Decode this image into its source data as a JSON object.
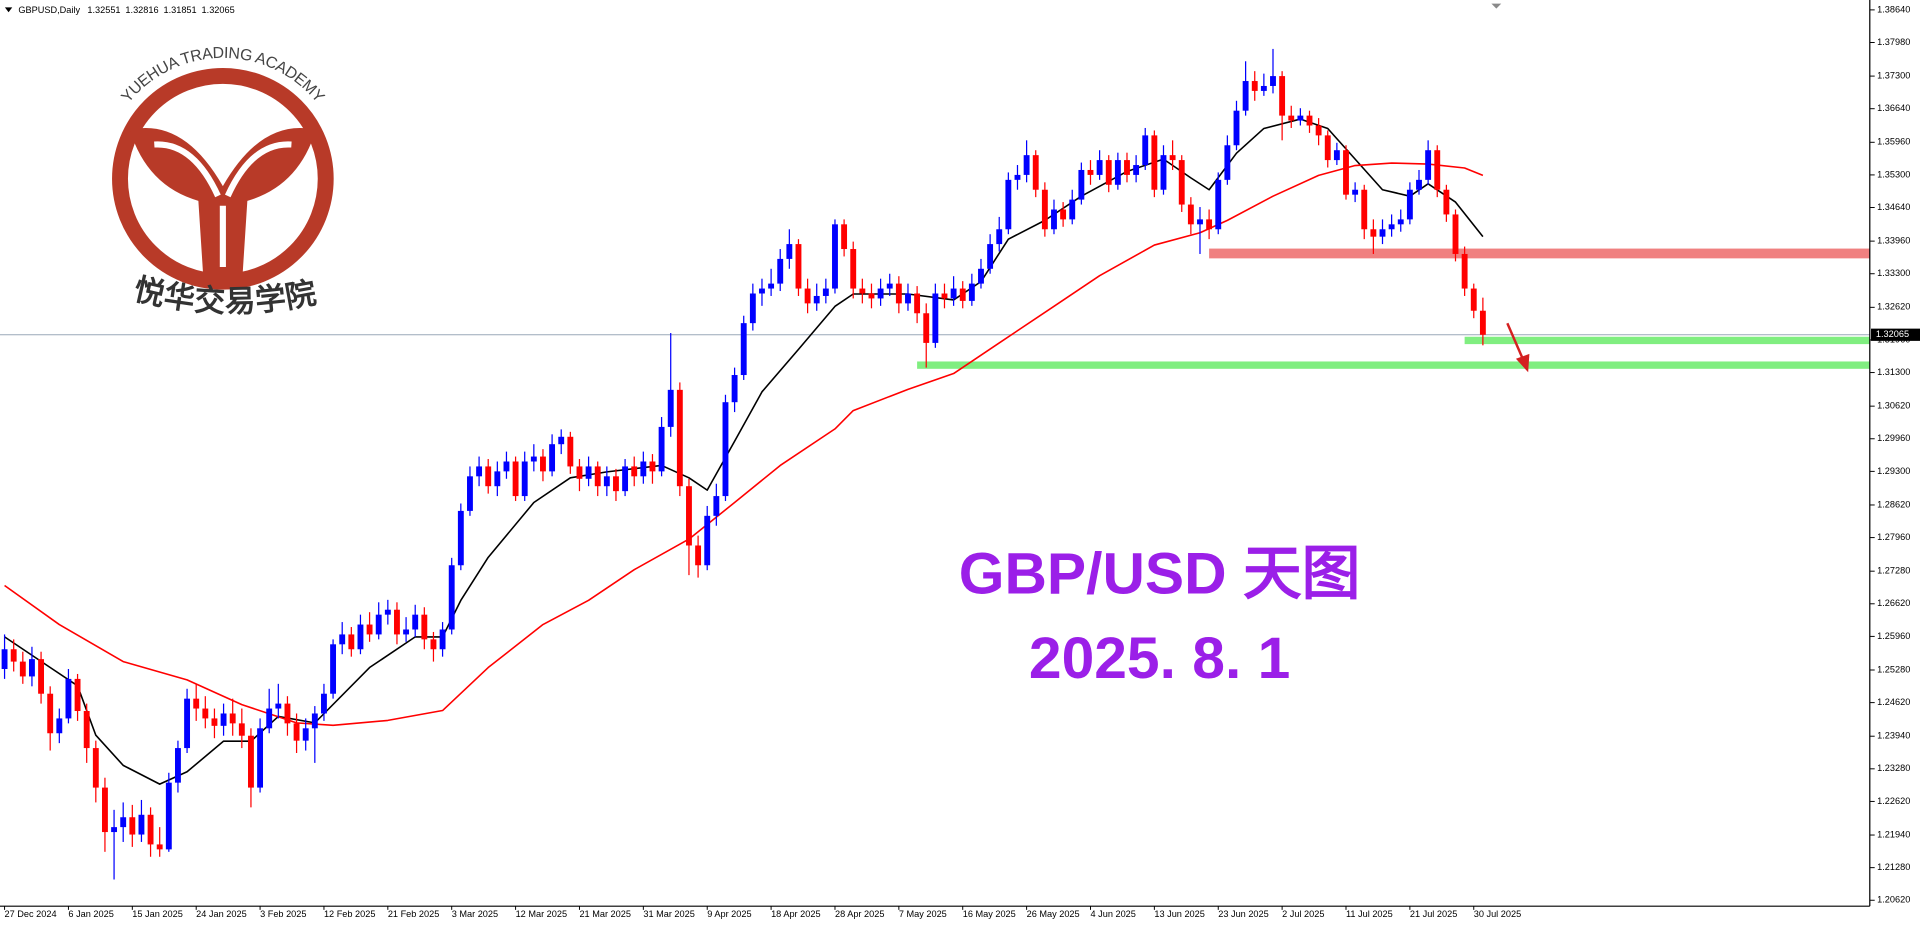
{
  "chart_data": {
    "type": "candlestick",
    "header": {
      "symbol": "GBPUSD,Daily"
    },
    "up_color": "#0000ff",
    "down_color": "#ff0000",
    "grid": false,
    "xlim": [
      -0.5,
      204.4
    ],
    "ylim": [
      1.205,
      1.3884
    ],
    "yticks": [
      {
        "value": 1.3864,
        "label": "1.38640"
      },
      {
        "value": 1.3798,
        "label": "1.37980"
      },
      {
        "value": 1.373,
        "label": "1.37300"
      },
      {
        "value": 1.3664,
        "label": "1.36640"
      },
      {
        "value": 1.3596,
        "label": "1.35960"
      },
      {
        "value": 1.353,
        "label": "1.35300"
      },
      {
        "value": 1.3464,
        "label": "1.34640"
      },
      {
        "value": 1.3396,
        "label": "1.33960"
      },
      {
        "value": 1.333,
        "label": "1.33300"
      },
      {
        "value": 1.3262,
        "label": "1.32620"
      },
      {
        "value": 1.3196,
        "label": "1.31960"
      },
      {
        "value": 1.313,
        "label": "1.31300"
      },
      {
        "value": 1.3062,
        "label": "1.30620"
      },
      {
        "value": 1.2996,
        "label": "1.29960"
      },
      {
        "value": 1.293,
        "label": "1.29300"
      },
      {
        "value": 1.2862,
        "label": "1.28620"
      },
      {
        "value": 1.2796,
        "label": "1.27960"
      },
      {
        "value": 1.2728,
        "label": "1.27280"
      },
      {
        "value": 1.2662,
        "label": "1.26620"
      },
      {
        "value": 1.2596,
        "label": "1.25960"
      },
      {
        "value": 1.2528,
        "label": "1.25280"
      },
      {
        "value": 1.2462,
        "label": "1.24620"
      },
      {
        "value": 1.2394,
        "label": "1.23940"
      },
      {
        "value": 1.2328,
        "label": "1.23280"
      },
      {
        "value": 1.2262,
        "label": "1.22620"
      },
      {
        "value": 1.2194,
        "label": "1.21940"
      },
      {
        "value": 1.2128,
        "label": "1.21280"
      },
      {
        "value": 1.2062,
        "label": "1.20620"
      }
    ],
    "xticks": [
      {
        "value": 0,
        "label": "27 Dec 2024"
      },
      {
        "value": 7,
        "label": "6 Jan 2025"
      },
      {
        "value": 14,
        "label": "15 Jan 2025"
      },
      {
        "value": 21,
        "label": "24 Jan 2025"
      },
      {
        "value": 28,
        "label": "3 Feb 2025"
      },
      {
        "value": 35,
        "label": "12 Feb 2025"
      },
      {
        "value": 42,
        "label": "21 Feb 2025"
      },
      {
        "value": 49,
        "label": "3 Mar 2025"
      },
      {
        "value": 56,
        "label": "12 Mar 2025"
      },
      {
        "value": 63,
        "label": "21 Mar 2025"
      },
      {
        "value": 70,
        "label": "31 Mar 2025"
      },
      {
        "value": 77,
        "label": "9 Apr 2025"
      },
      {
        "value": 84,
        "label": "18 Apr 2025"
      },
      {
        "value": 91,
        "label": "28 Apr 2025"
      },
      {
        "value": 98,
        "label": "7 May 2025"
      },
      {
        "value": 105,
        "label": "16 May 2025"
      },
      {
        "value": 112,
        "label": "26 May 2025"
      },
      {
        "value": 119,
        "label": "4 Jun 2025"
      },
      {
        "value": 126,
        "label": "13 Jun 2025"
      },
      {
        "value": 133,
        "label": "23 Jun 2025"
      },
      {
        "value": 140,
        "label": "2 Jul 2025"
      },
      {
        "value": 147,
        "label": "11 Jul 2025"
      },
      {
        "value": 154,
        "label": "21 Jul 2025"
      },
      {
        "value": 161,
        "label": "30 Jul 2025"
      }
    ],
    "ohlc": [
      [
        1.253,
        1.26,
        1.251,
        1.257
      ],
      [
        1.257,
        1.259,
        1.2525,
        1.2545
      ],
      [
        1.2545,
        1.2565,
        1.25,
        1.2515
      ],
      [
        1.2515,
        1.2575,
        1.2495,
        1.255
      ],
      [
        1.255,
        1.2565,
        1.246,
        1.248
      ],
      [
        1.248,
        1.2495,
        1.2365,
        1.24
      ],
      [
        1.24,
        1.245,
        1.238,
        1.243
      ],
      [
        1.243,
        1.253,
        1.242,
        1.251
      ],
      [
        1.251,
        1.252,
        1.2425,
        1.2445
      ],
      [
        1.2445,
        1.246,
        1.234,
        1.237
      ],
      [
        1.237,
        1.2385,
        1.226,
        1.229
      ],
      [
        1.229,
        1.231,
        1.216,
        1.22
      ],
      [
        1.22,
        1.2245,
        1.2104,
        1.221
      ],
      [
        1.221,
        1.226,
        1.218,
        1.223
      ],
      [
        1.223,
        1.2255,
        1.217,
        1.2195
      ],
      [
        1.2195,
        1.2265,
        1.218,
        1.2235
      ],
      [
        1.2235,
        1.225,
        1.215,
        1.2175
      ],
      [
        1.2175,
        1.221,
        1.215,
        1.2165
      ],
      [
        1.2165,
        1.232,
        1.216,
        1.23
      ],
      [
        1.23,
        1.2385,
        1.228,
        1.237
      ],
      [
        1.237,
        1.249,
        1.236,
        1.247
      ],
      [
        1.247,
        1.25,
        1.2425,
        1.245
      ],
      [
        1.245,
        1.2475,
        1.241,
        1.243
      ],
      [
        1.243,
        1.245,
        1.239,
        1.2415
      ],
      [
        1.2415,
        1.246,
        1.2395,
        1.244
      ],
      [
        1.244,
        1.247,
        1.2395,
        1.242
      ],
      [
        1.242,
        1.245,
        1.237,
        1.2395
      ],
      [
        1.2395,
        1.241,
        1.225,
        1.229
      ],
      [
        1.229,
        1.243,
        1.228,
        1.241
      ],
      [
        1.241,
        1.249,
        1.24,
        1.245
      ],
      [
        1.245,
        1.25,
        1.243,
        1.246
      ],
      [
        1.246,
        1.2475,
        1.2395,
        1.242
      ],
      [
        1.242,
        1.244,
        1.236,
        1.2385
      ],
      [
        1.2385,
        1.243,
        1.2365,
        1.241
      ],
      [
        1.241,
        1.2455,
        1.234,
        1.244
      ],
      [
        1.244,
        1.25,
        1.2425,
        1.248
      ],
      [
        1.248,
        1.259,
        1.247,
        1.258
      ],
      [
        1.258,
        1.2625,
        1.256,
        1.26
      ],
      [
        1.26,
        1.2615,
        1.2555,
        1.257
      ],
      [
        1.257,
        1.264,
        1.256,
        1.262
      ],
      [
        1.262,
        1.2645,
        1.2585,
        1.26
      ],
      [
        1.26,
        1.2665,
        1.259,
        1.264
      ],
      [
        1.264,
        1.267,
        1.262,
        1.265
      ],
      [
        1.265,
        1.2665,
        1.258,
        1.26
      ],
      [
        1.26,
        1.2635,
        1.2585,
        1.261
      ],
      [
        1.261,
        1.266,
        1.2595,
        1.264
      ],
      [
        1.264,
        1.2655,
        1.257,
        1.259
      ],
      [
        1.259,
        1.2605,
        1.2545,
        1.257
      ],
      [
        1.257,
        1.2625,
        1.2555,
        1.261
      ],
      [
        1.261,
        1.2755,
        1.26,
        1.274
      ],
      [
        1.274,
        1.2865,
        1.273,
        1.285
      ],
      [
        1.285,
        1.294,
        1.284,
        1.292
      ],
      [
        1.292,
        1.296,
        1.29,
        1.294
      ],
      [
        1.294,
        1.2955,
        1.2885,
        1.29
      ],
      [
        1.29,
        1.295,
        1.288,
        1.293
      ],
      [
        1.293,
        1.297,
        1.2915,
        1.295
      ],
      [
        1.295,
        1.296,
        1.287,
        1.288
      ],
      [
        1.288,
        1.297,
        1.287,
        1.295
      ],
      [
        1.295,
        1.2985,
        1.293,
        1.296
      ],
      [
        1.296,
        1.2975,
        1.291,
        1.293
      ],
      [
        1.293,
        1.3005,
        1.292,
        1.2985
      ],
      [
        1.2985,
        1.3015,
        1.2965,
        1.3
      ],
      [
        1.3,
        1.301,
        1.2925,
        1.294
      ],
      [
        1.294,
        1.2955,
        1.289,
        1.2915
      ],
      [
        1.2915,
        1.296,
        1.29,
        1.294
      ],
      [
        1.294,
        1.295,
        1.288,
        1.29
      ],
      [
        1.29,
        1.294,
        1.288,
        1.292
      ],
      [
        1.292,
        1.2935,
        1.287,
        1.289
      ],
      [
        1.289,
        1.2955,
        1.288,
        1.294
      ],
      [
        1.294,
        1.296,
        1.29,
        1.292
      ],
      [
        1.292,
        1.297,
        1.2905,
        1.295
      ],
      [
        1.295,
        1.2965,
        1.2905,
        1.293
      ],
      [
        1.293,
        1.304,
        1.292,
        1.302
      ],
      [
        1.302,
        1.321,
        1.3,
        1.3095
      ],
      [
        1.3095,
        1.311,
        1.288,
        1.29
      ],
      [
        1.29,
        1.2915,
        1.272,
        1.278
      ],
      [
        1.278,
        1.28,
        1.2715,
        1.274
      ],
      [
        1.274,
        1.286,
        1.273,
        1.284
      ],
      [
        1.284,
        1.2905,
        1.282,
        1.288
      ],
      [
        1.288,
        1.3085,
        1.287,
        1.307
      ],
      [
        1.307,
        1.314,
        1.305,
        1.3125
      ],
      [
        1.3125,
        1.3245,
        1.3115,
        1.323
      ],
      [
        1.323,
        1.331,
        1.3215,
        1.329
      ],
      [
        1.329,
        1.332,
        1.3265,
        1.33
      ],
      [
        1.33,
        1.334,
        1.3285,
        1.331
      ],
      [
        1.331,
        1.338,
        1.3295,
        1.336
      ],
      [
        1.336,
        1.342,
        1.334,
        1.339
      ],
      [
        1.339,
        1.34,
        1.3285,
        1.33
      ],
      [
        1.33,
        1.332,
        1.325,
        1.327
      ],
      [
        1.327,
        1.331,
        1.3255,
        1.3285
      ],
      [
        1.3285,
        1.332,
        1.327,
        1.33
      ],
      [
        1.33,
        1.344,
        1.329,
        1.343
      ],
      [
        1.343,
        1.344,
        1.3365,
        1.338
      ],
      [
        1.338,
        1.3395,
        1.328,
        1.33
      ],
      [
        1.33,
        1.332,
        1.327,
        1.329
      ],
      [
        1.329,
        1.331,
        1.326,
        1.328
      ],
      [
        1.328,
        1.332,
        1.3265,
        1.33
      ],
      [
        1.33,
        1.333,
        1.3285,
        1.331
      ],
      [
        1.331,
        1.3325,
        1.325,
        1.327
      ],
      [
        1.327,
        1.331,
        1.3255,
        1.329
      ],
      [
        1.329,
        1.3305,
        1.323,
        1.325
      ],
      [
        1.325,
        1.327,
        1.314,
        1.319
      ],
      [
        1.319,
        1.331,
        1.318,
        1.329
      ],
      [
        1.329,
        1.331,
        1.326,
        1.328
      ],
      [
        1.328,
        1.3325,
        1.3265,
        1.33
      ],
      [
        1.33,
        1.3315,
        1.326,
        1.3275
      ],
      [
        1.3275,
        1.333,
        1.3265,
        1.331
      ],
      [
        1.331,
        1.336,
        1.33,
        1.334
      ],
      [
        1.334,
        1.341,
        1.333,
        1.339
      ],
      [
        1.339,
        1.3445,
        1.3375,
        1.342
      ],
      [
        1.342,
        1.3535,
        1.341,
        1.352
      ],
      [
        1.352,
        1.355,
        1.35,
        1.353
      ],
      [
        1.353,
        1.36,
        1.3515,
        1.357
      ],
      [
        1.357,
        1.358,
        1.3485,
        1.35
      ],
      [
        1.35,
        1.3515,
        1.3405,
        1.342
      ],
      [
        1.342,
        1.348,
        1.341,
        1.346
      ],
      [
        1.346,
        1.3475,
        1.3425,
        1.344
      ],
      [
        1.344,
        1.35,
        1.343,
        1.348
      ],
      [
        1.348,
        1.3555,
        1.347,
        1.354
      ],
      [
        1.354,
        1.356,
        1.351,
        1.353
      ],
      [
        1.353,
        1.358,
        1.352,
        1.356
      ],
      [
        1.356,
        1.357,
        1.3495,
        1.351
      ],
      [
        1.351,
        1.3575,
        1.35,
        1.356
      ],
      [
        1.356,
        1.3575,
        1.3515,
        1.353
      ],
      [
        1.353,
        1.357,
        1.3515,
        1.355
      ],
      [
        1.355,
        1.3625,
        1.354,
        1.361
      ],
      [
        1.361,
        1.362,
        1.3485,
        1.35
      ],
      [
        1.35,
        1.359,
        1.349,
        1.357
      ],
      [
        1.357,
        1.36,
        1.354,
        1.356
      ],
      [
        1.356,
        1.357,
        1.3455,
        1.347
      ],
      [
        1.347,
        1.3485,
        1.341,
        1.343
      ],
      [
        1.343,
        1.3465,
        1.337,
        1.344
      ],
      [
        1.344,
        1.346,
        1.34,
        1.342
      ],
      [
        1.342,
        1.3535,
        1.341,
        1.352
      ],
      [
        1.352,
        1.361,
        1.351,
        1.359
      ],
      [
        1.359,
        1.368,
        1.358,
        1.366
      ],
      [
        1.366,
        1.376,
        1.365,
        1.372
      ],
      [
        1.372,
        1.374,
        1.368,
        1.37
      ],
      [
        1.37,
        1.3735,
        1.369,
        1.371
      ],
      [
        1.371,
        1.3785,
        1.3695,
        1.373
      ],
      [
        1.373,
        1.374,
        1.36,
        1.365
      ],
      [
        1.365,
        1.367,
        1.3625,
        1.364
      ],
      [
        1.364,
        1.3665,
        1.363,
        1.365
      ],
      [
        1.365,
        1.366,
        1.3615,
        1.363
      ],
      [
        1.363,
        1.3645,
        1.359,
        1.361
      ],
      [
        1.361,
        1.362,
        1.3545,
        1.356
      ],
      [
        1.356,
        1.3595,
        1.355,
        1.358
      ],
      [
        1.358,
        1.359,
        1.348,
        1.349
      ],
      [
        1.349,
        1.3515,
        1.3475,
        1.35
      ],
      [
        1.35,
        1.351,
        1.34,
        1.342
      ],
      [
        1.342,
        1.344,
        1.337,
        1.3405
      ],
      [
        1.3405,
        1.344,
        1.339,
        1.342
      ],
      [
        1.342,
        1.345,
        1.3405,
        1.343
      ],
      [
        1.343,
        1.346,
        1.3415,
        1.344
      ],
      [
        1.344,
        1.3515,
        1.343,
        1.35
      ],
      [
        1.35,
        1.354,
        1.349,
        1.352
      ],
      [
        1.352,
        1.36,
        1.351,
        1.358
      ],
      [
        1.358,
        1.359,
        1.3485,
        1.35
      ],
      [
        1.35,
        1.351,
        1.3435,
        1.345
      ],
      [
        1.345,
        1.346,
        1.3355,
        1.337
      ],
      [
        1.337,
        1.3385,
        1.3285,
        1.33
      ],
      [
        1.33,
        1.331,
        1.324,
        1.32551
      ],
      [
        1.32551,
        1.32816,
        1.31851,
        1.32065
      ]
    ],
    "lines": [
      {
        "color": "#000000",
        "x": [
          0,
          5,
          8,
          10,
          13,
          17,
          20,
          24,
          27,
          30,
          34,
          40,
          45,
          48,
          50,
          53,
          58,
          62,
          66,
          72,
          75,
          77,
          80,
          83,
          87,
          91,
          93,
          99,
          104,
          107,
          110,
          114,
          118,
          123,
          127,
          130,
          132,
          135,
          138,
          142,
          145,
          148,
          151,
          154,
          156,
          159,
          162
        ],
        "values": [
          1.2595,
          1.2533,
          1.2496,
          1.2396,
          1.2335,
          1.2297,
          1.2322,
          1.2384,
          1.2384,
          1.2434,
          1.2421,
          1.2533,
          1.2595,
          1.2595,
          1.2669,
          1.2756,
          1.2867,
          1.2917,
          1.2929,
          1.2942,
          1.2917,
          1.2892,
          1.2991,
          1.3091,
          1.3177,
          1.3264,
          1.3289,
          1.3289,
          1.3277,
          1.3314,
          1.34,
          1.3438,
          1.3487,
          1.3537,
          1.3562,
          1.3524,
          1.35,
          1.3574,
          1.3624,
          1.3643,
          1.3624,
          1.3562,
          1.35,
          1.3487,
          1.3512,
          1.3475,
          1.3405
        ]
      },
      {
        "color": "#ff0000",
        "x": [
          0,
          6,
          13,
          20,
          26,
          32,
          36,
          42,
          48,
          53,
          59,
          64,
          69,
          75,
          80,
          85,
          91,
          93,
          99,
          104,
          109,
          115,
          120,
          126,
          131,
          134,
          139,
          144,
          148,
          152,
          156,
          160,
          162
        ],
        "values": [
          1.2699,
          1.262,
          1.2545,
          1.2508,
          1.2458,
          1.2421,
          1.2416,
          1.2426,
          1.2446,
          1.2533,
          1.262,
          1.2669,
          1.2731,
          1.2793,
          1.2867,
          1.2942,
          1.3016,
          1.3053,
          1.3096,
          1.3128,
          1.319,
          1.3264,
          1.3326,
          1.3388,
          1.3413,
          1.3438,
          1.3487,
          1.3529,
          1.3549,
          1.3554,
          1.3552,
          1.3544,
          1.3529
        ]
      }
    ],
    "zones": [
      {
        "value": 1.3371,
        "start": 132,
        "color": "#f08080"
      },
      {
        "value": 1.3195,
        "start": 160,
        "color": "#80ee80"
      },
      {
        "value": 1.3145,
        "start": 100,
        "color": "#80ee80"
      }
    ],
    "price_line_color": "#9aa8b8",
    "annotations": {
      "title": "GBP/USD 天图",
      "date": "2025. 8. 1",
      "color": "#9b1fe8"
    },
    "logo": {
      "top": "YUEHUA TRADING ACADEMY",
      "bottom": "悦华交易学院"
    }
  }
}
